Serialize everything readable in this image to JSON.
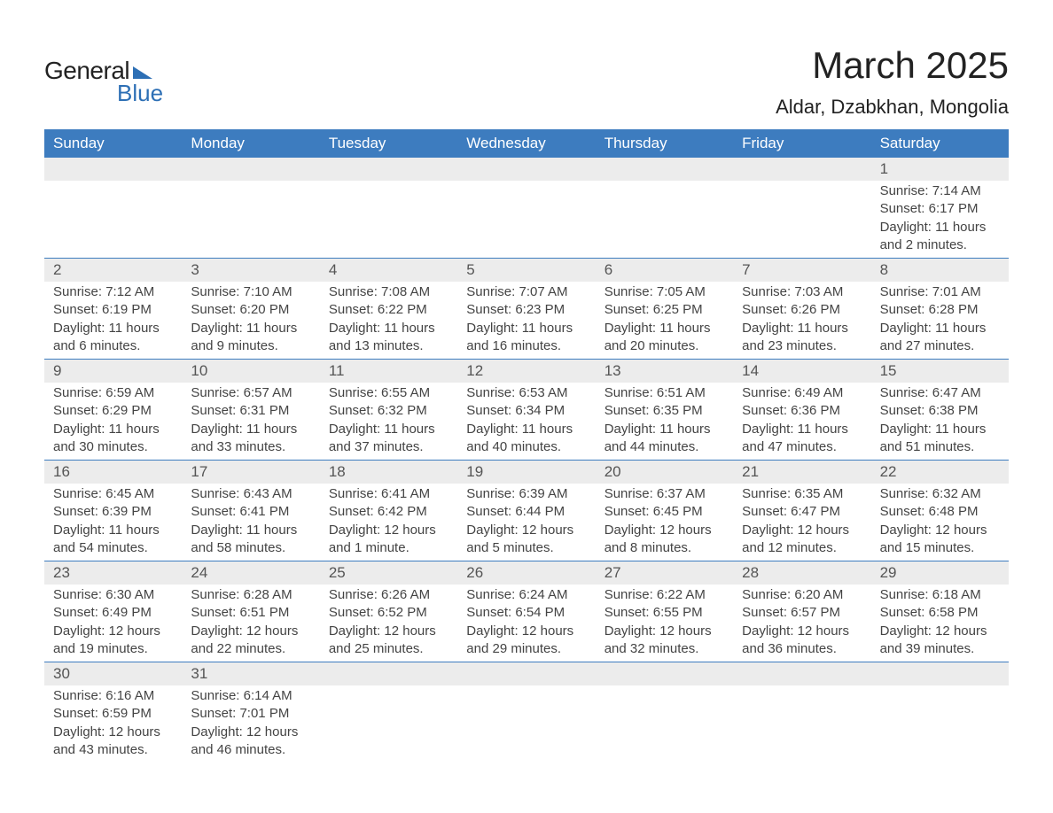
{
  "brand": {
    "word1": "General",
    "word2": "Blue",
    "accent_color": "#2d6fb5"
  },
  "title": "March 2025",
  "location": "Aldar, Dzabkhan, Mongolia",
  "header_bg": "#3d7cbf",
  "header_text_color": "#ffffff",
  "daynum_bg": "#ececec",
  "row_border_color": "#3d7cbf",
  "text_color": "#444444",
  "font_family": "Arial, Helvetica, sans-serif",
  "title_fontsize": 42,
  "location_fontsize": 22,
  "header_fontsize": 17,
  "body_fontsize": 15,
  "columns": [
    "Sunday",
    "Monday",
    "Tuesday",
    "Wednesday",
    "Thursday",
    "Friday",
    "Saturday"
  ],
  "weeks": [
    [
      null,
      null,
      null,
      null,
      null,
      null,
      {
        "n": "1",
        "sunrise": "7:14 AM",
        "sunset": "6:17 PM",
        "daylight": "11 hours and 2 minutes."
      }
    ],
    [
      {
        "n": "2",
        "sunrise": "7:12 AM",
        "sunset": "6:19 PM",
        "daylight": "11 hours and 6 minutes."
      },
      {
        "n": "3",
        "sunrise": "7:10 AM",
        "sunset": "6:20 PM",
        "daylight": "11 hours and 9 minutes."
      },
      {
        "n": "4",
        "sunrise": "7:08 AM",
        "sunset": "6:22 PM",
        "daylight": "11 hours and 13 minutes."
      },
      {
        "n": "5",
        "sunrise": "7:07 AM",
        "sunset": "6:23 PM",
        "daylight": "11 hours and 16 minutes."
      },
      {
        "n": "6",
        "sunrise": "7:05 AM",
        "sunset": "6:25 PM",
        "daylight": "11 hours and 20 minutes."
      },
      {
        "n": "7",
        "sunrise": "7:03 AM",
        "sunset": "6:26 PM",
        "daylight": "11 hours and 23 minutes."
      },
      {
        "n": "8",
        "sunrise": "7:01 AM",
        "sunset": "6:28 PM",
        "daylight": "11 hours and 27 minutes."
      }
    ],
    [
      {
        "n": "9",
        "sunrise": "6:59 AM",
        "sunset": "6:29 PM",
        "daylight": "11 hours and 30 minutes."
      },
      {
        "n": "10",
        "sunrise": "6:57 AM",
        "sunset": "6:31 PM",
        "daylight": "11 hours and 33 minutes."
      },
      {
        "n": "11",
        "sunrise": "6:55 AM",
        "sunset": "6:32 PM",
        "daylight": "11 hours and 37 minutes."
      },
      {
        "n": "12",
        "sunrise": "6:53 AM",
        "sunset": "6:34 PM",
        "daylight": "11 hours and 40 minutes."
      },
      {
        "n": "13",
        "sunrise": "6:51 AM",
        "sunset": "6:35 PM",
        "daylight": "11 hours and 44 minutes."
      },
      {
        "n": "14",
        "sunrise": "6:49 AM",
        "sunset": "6:36 PM",
        "daylight": "11 hours and 47 minutes."
      },
      {
        "n": "15",
        "sunrise": "6:47 AM",
        "sunset": "6:38 PM",
        "daylight": "11 hours and 51 minutes."
      }
    ],
    [
      {
        "n": "16",
        "sunrise": "6:45 AM",
        "sunset": "6:39 PM",
        "daylight": "11 hours and 54 minutes."
      },
      {
        "n": "17",
        "sunrise": "6:43 AM",
        "sunset": "6:41 PM",
        "daylight": "11 hours and 58 minutes."
      },
      {
        "n": "18",
        "sunrise": "6:41 AM",
        "sunset": "6:42 PM",
        "daylight": "12 hours and 1 minute."
      },
      {
        "n": "19",
        "sunrise": "6:39 AM",
        "sunset": "6:44 PM",
        "daylight": "12 hours and 5 minutes."
      },
      {
        "n": "20",
        "sunrise": "6:37 AM",
        "sunset": "6:45 PM",
        "daylight": "12 hours and 8 minutes."
      },
      {
        "n": "21",
        "sunrise": "6:35 AM",
        "sunset": "6:47 PM",
        "daylight": "12 hours and 12 minutes."
      },
      {
        "n": "22",
        "sunrise": "6:32 AM",
        "sunset": "6:48 PM",
        "daylight": "12 hours and 15 minutes."
      }
    ],
    [
      {
        "n": "23",
        "sunrise": "6:30 AM",
        "sunset": "6:49 PM",
        "daylight": "12 hours and 19 minutes."
      },
      {
        "n": "24",
        "sunrise": "6:28 AM",
        "sunset": "6:51 PM",
        "daylight": "12 hours and 22 minutes."
      },
      {
        "n": "25",
        "sunrise": "6:26 AM",
        "sunset": "6:52 PM",
        "daylight": "12 hours and 25 minutes."
      },
      {
        "n": "26",
        "sunrise": "6:24 AM",
        "sunset": "6:54 PM",
        "daylight": "12 hours and 29 minutes."
      },
      {
        "n": "27",
        "sunrise": "6:22 AM",
        "sunset": "6:55 PM",
        "daylight": "12 hours and 32 minutes."
      },
      {
        "n": "28",
        "sunrise": "6:20 AM",
        "sunset": "6:57 PM",
        "daylight": "12 hours and 36 minutes."
      },
      {
        "n": "29",
        "sunrise": "6:18 AM",
        "sunset": "6:58 PM",
        "daylight": "12 hours and 39 minutes."
      }
    ],
    [
      {
        "n": "30",
        "sunrise": "6:16 AM",
        "sunset": "6:59 PM",
        "daylight": "12 hours and 43 minutes."
      },
      {
        "n": "31",
        "sunrise": "6:14 AM",
        "sunset": "7:01 PM",
        "daylight": "12 hours and 46 minutes."
      },
      null,
      null,
      null,
      null,
      null
    ]
  ],
  "labels": {
    "sunrise_prefix": "Sunrise: ",
    "sunset_prefix": "Sunset: ",
    "daylight_prefix": "Daylight: "
  }
}
